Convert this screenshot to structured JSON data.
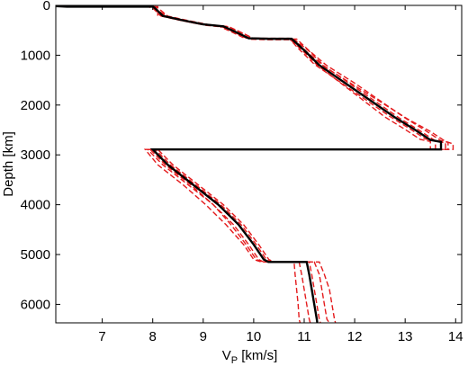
{
  "chart_data": {
    "type": "line",
    "title": "",
    "xlabel": "V",
    "xlabel_sub": "P",
    "xlabel_units": " [km/s]",
    "ylabel": "Depth [km]",
    "xlim": [
      6.08,
      14.12
    ],
    "ylim": [
      0,
      6371
    ],
    "y_inverted": true,
    "grid": false,
    "xticks": [
      7,
      8,
      9,
      10,
      11,
      12,
      13,
      14
    ],
    "yticks": [
      0,
      1000,
      2000,
      3000,
      4000,
      5000,
      6000
    ],
    "xtick_labels": [
      "7",
      "8",
      "9",
      "10",
      "11",
      "12",
      "13",
      "14"
    ],
    "ytick_labels": [
      "0",
      "1000",
      "2000",
      "3000",
      "4000",
      "5000",
      "6000"
    ],
    "reference_color": "#000000",
    "ensemble_color": "#e41a1c",
    "reference": {
      "x": [
        6.1,
        6.1,
        6.3,
        8.0,
        8.04,
        8.2,
        8.6,
        9.0,
        9.4,
        9.7,
        9.9,
        10.3,
        10.75,
        11.0,
        11.3,
        11.8,
        12.3,
        12.8,
        13.2,
        13.5,
        13.71,
        13.71,
        8.0,
        8.3,
        8.8,
        9.3,
        9.7,
        10.0,
        10.2,
        10.29,
        11.05,
        11.1,
        11.15,
        11.2,
        11.25,
        11.26
      ],
      "y": [
        0,
        15,
        25,
        25,
        50,
        210,
        300,
        380,
        420,
        560,
        660,
        670,
        670,
        900,
        1200,
        1550,
        1900,
        2250,
        2500,
        2700,
        2740,
        2891,
        2891,
        3200,
        3600,
        4000,
        4400,
        4800,
        5100,
        5150,
        5150,
        5400,
        5700,
        6000,
        6300,
        6371
      ]
    },
    "ensemble": [
      {
        "x": [
          6.1,
          6.1,
          6.4,
          7.9,
          8.0,
          8.3,
          8.7,
          9.1,
          9.5,
          9.8,
          10.0,
          10.4,
          10.8,
          11.1,
          11.4,
          11.9,
          12.4,
          12.9,
          13.3,
          13.6,
          13.8,
          13.8,
          7.9,
          8.2,
          8.7,
          9.2,
          9.6,
          9.9,
          10.1,
          10.2,
          10.9,
          10.95,
          11.0,
          11.05,
          11.1,
          11.12
        ],
        "y": [
          0,
          15,
          25,
          25,
          50,
          220,
          310,
          390,
          430,
          570,
          670,
          680,
          680,
          920,
          1220,
          1570,
          1920,
          2270,
          2520,
          2720,
          2760,
          2891,
          2891,
          3200,
          3600,
          4000,
          4400,
          4800,
          5100,
          5150,
          5150,
          5400,
          5700,
          6000,
          6300,
          6371
        ]
      },
      {
        "x": [
          6.1,
          6.1,
          6.2,
          8.1,
          8.1,
          8.1,
          8.5,
          8.9,
          9.3,
          9.6,
          9.8,
          10.2,
          10.7,
          10.9,
          11.2,
          11.7,
          12.2,
          12.7,
          13.1,
          13.4,
          13.6,
          13.6,
          8.1,
          8.4,
          8.9,
          9.4,
          9.8,
          10.1,
          10.3,
          10.4,
          11.2,
          11.3,
          11.35,
          11.4,
          11.45,
          11.5
        ],
        "y": [
          0,
          15,
          25,
          25,
          50,
          200,
          290,
          370,
          410,
          550,
          650,
          660,
          660,
          880,
          1180,
          1530,
          1880,
          2230,
          2480,
          2680,
          2720,
          2891,
          2891,
          3200,
          3600,
          4000,
          4400,
          4800,
          5100,
          5150,
          5150,
          5400,
          5700,
          6000,
          6300,
          6371
        ]
      },
      {
        "x": [
          6.1,
          6.1,
          6.35,
          8.0,
          8.05,
          8.25,
          8.65,
          9.05,
          9.45,
          9.75,
          9.95,
          10.35,
          10.8,
          11.05,
          11.4,
          11.95,
          12.5,
          13.05,
          13.5,
          13.8,
          13.95,
          13.95,
          7.85,
          8.1,
          8.6,
          9.05,
          9.45,
          9.8,
          10.0,
          10.15,
          10.8,
          10.82,
          10.85,
          10.88,
          10.9,
          10.92
        ],
        "y": [
          0,
          15,
          25,
          25,
          50,
          230,
          320,
          400,
          440,
          580,
          680,
          690,
          690,
          930,
          1230,
          1580,
          1930,
          2280,
          2530,
          2730,
          2780,
          2891,
          2891,
          3200,
          3600,
          4000,
          4400,
          4800,
          5100,
          5150,
          5150,
          5400,
          5700,
          6000,
          6300,
          6371
        ]
      },
      {
        "x": [
          6.1,
          6.1,
          6.25,
          7.95,
          8.0,
          8.15,
          8.55,
          8.95,
          9.35,
          9.65,
          9.85,
          10.25,
          10.7,
          10.95,
          11.25,
          11.7,
          12.15,
          12.6,
          13.0,
          13.3,
          13.5,
          13.5,
          8.05,
          8.35,
          8.85,
          9.35,
          9.75,
          10.05,
          10.25,
          10.35,
          11.3,
          11.4,
          11.5,
          11.55,
          11.6,
          11.62
        ],
        "y": [
          0,
          15,
          25,
          25,
          50,
          205,
          295,
          375,
          415,
          555,
          655,
          665,
          665,
          890,
          1190,
          1540,
          1890,
          2240,
          2490,
          2690,
          2730,
          2891,
          2891,
          3200,
          3600,
          4000,
          4400,
          4800,
          5100,
          5150,
          5150,
          5400,
          5700,
          6000,
          6300,
          6371
        ]
      },
      {
        "x": [
          6.1,
          6.1,
          6.45,
          8.05,
          8.1,
          8.3,
          8.7,
          9.1,
          9.5,
          9.8,
          10.0,
          10.4,
          10.85,
          11.1,
          11.45,
          12.0,
          12.5,
          13.0,
          13.4,
          13.7,
          13.85,
          13.85,
          7.95,
          8.25,
          8.75,
          9.2,
          9.55,
          9.85,
          10.05,
          10.2,
          11.1,
          11.15,
          11.2,
          11.25,
          11.3,
          11.32
        ],
        "y": [
          0,
          15,
          25,
          25,
          50,
          215,
          305,
          385,
          425,
          565,
          665,
          675,
          675,
          910,
          1210,
          1560,
          1910,
          2260,
          2510,
          2710,
          2750,
          2891,
          2891,
          3200,
          3600,
          4000,
          4400,
          4800,
          5100,
          5150,
          5150,
          5400,
          5700,
          6000,
          6300,
          6371
        ]
      }
    ]
  }
}
